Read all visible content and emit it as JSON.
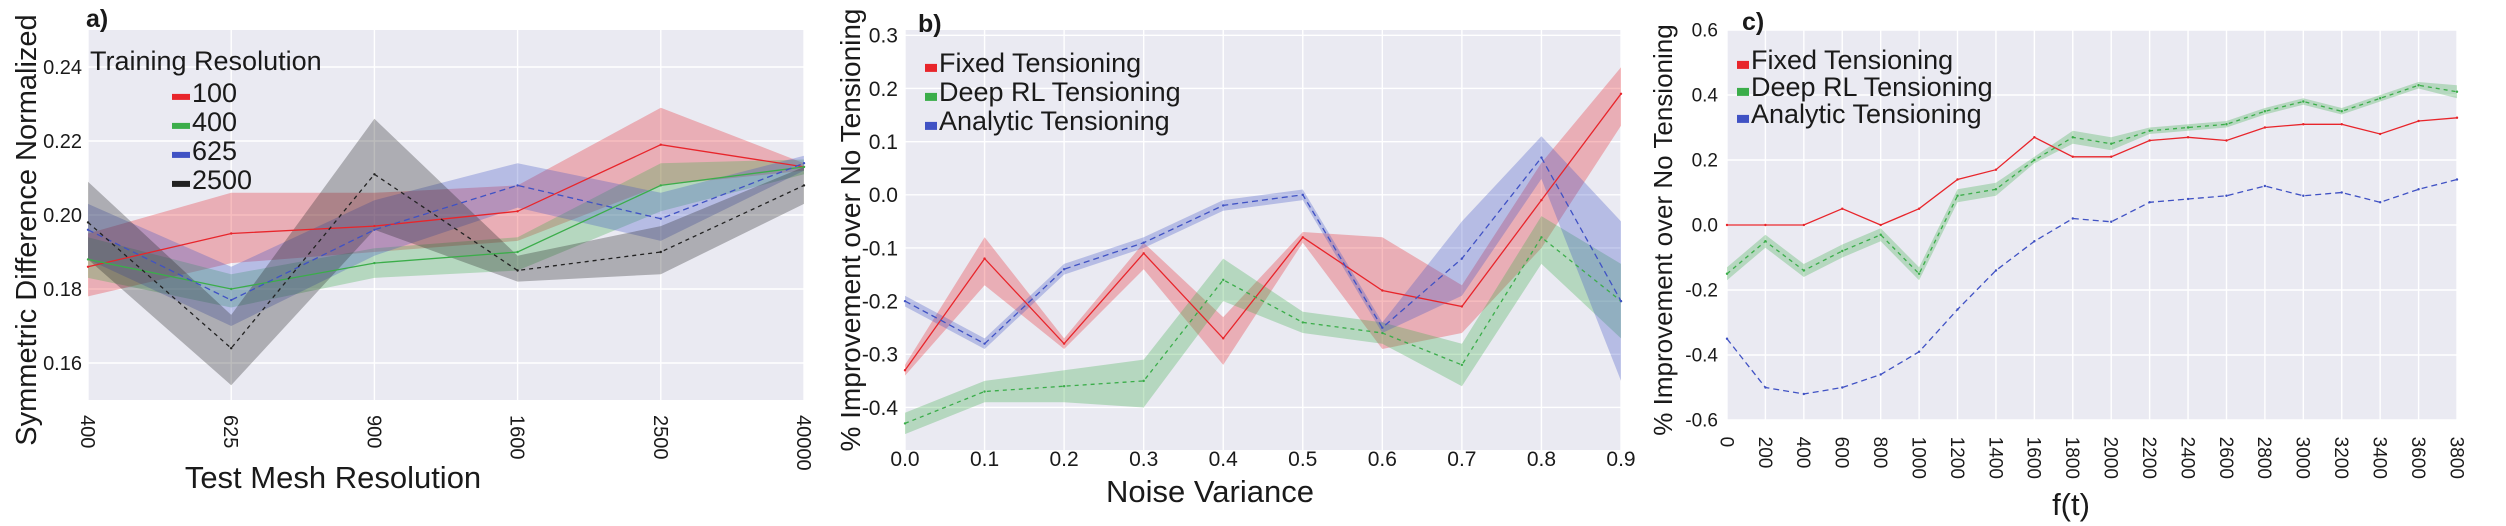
{
  "chart_data": [
    {
      "panel": "a)",
      "type": "line",
      "xlabel": "Test Mesh Resolution",
      "ylabel": "Symmetric Difference Normalized",
      "categories": [
        "400",
        "625",
        "900",
        "1600",
        "2500",
        "40000"
      ],
      "ylim": [
        0.15,
        0.25
      ],
      "yticks": [
        "0.16",
        "0.18",
        "0.20",
        "0.22",
        "0.24"
      ],
      "grid": true,
      "legend_title": "Training Resolution",
      "legend_position": "top-left",
      "series": [
        {
          "name": "100",
          "color": "#e8252b",
          "values": [
            0.186,
            0.195,
            0.197,
            0.201,
            0.219,
            0.213
          ],
          "lower": [
            0.178,
            0.187,
            0.19,
            0.193,
            0.208,
            0.212
          ],
          "upper": [
            0.195,
            0.206,
            0.206,
            0.208,
            0.229,
            0.214
          ]
        },
        {
          "name": "400",
          "color": "#3bad4a",
          "values": [
            0.188,
            0.18,
            0.187,
            0.19,
            0.208,
            0.213
          ],
          "lower": [
            0.183,
            0.175,
            0.183,
            0.185,
            0.201,
            0.211
          ],
          "upper": [
            0.194,
            0.184,
            0.191,
            0.194,
            0.214,
            0.215
          ]
        },
        {
          "name": "625",
          "color": "#4052c4",
          "values": [
            0.196,
            0.177,
            0.196,
            0.208,
            0.199,
            0.214
          ],
          "lower": [
            0.188,
            0.17,
            0.189,
            0.202,
            0.193,
            0.212
          ],
          "upper": [
            0.203,
            0.186,
            0.204,
            0.214,
            0.206,
            0.216
          ]
        },
        {
          "name": "2500",
          "color": "#222222",
          "values": [
            0.198,
            0.164,
            0.211,
            0.185,
            0.19,
            0.208
          ],
          "lower": [
            0.188,
            0.154,
            0.196,
            0.182,
            0.184,
            0.203
          ],
          "upper": [
            0.209,
            0.173,
            0.226,
            0.189,
            0.197,
            0.213
          ]
        }
      ]
    },
    {
      "panel": "b)",
      "type": "line",
      "xlabel": "Noise Variance",
      "ylabel": "% Improvement over No Tensioning",
      "x": [
        0.0,
        0.1,
        0.2,
        0.3,
        0.4,
        0.5,
        0.6,
        0.7,
        0.8,
        0.9
      ],
      "xticks": [
        "0.0",
        "0.1",
        "0.2",
        "0.3",
        "0.4",
        "0.5",
        "0.6",
        "0.7",
        "0.8",
        "0.9"
      ],
      "ylim": [
        -0.48,
        0.31
      ],
      "yticks": [
        "-0.4",
        "-0.3",
        "-0.2",
        "-0.1",
        "0.0",
        "0.1",
        "0.2",
        "0.3"
      ],
      "grid": true,
      "legend_position": "top-left",
      "series": [
        {
          "name": "Fixed Tensioning",
          "color": "#e8252b",
          "values": [
            -0.33,
            -0.12,
            -0.28,
            -0.11,
            -0.27,
            -0.08,
            -0.18,
            -0.21,
            -0.01,
            0.19
          ],
          "lower": [
            -0.34,
            -0.17,
            -0.29,
            -0.14,
            -0.32,
            -0.09,
            -0.29,
            -0.26,
            -0.1,
            0.13
          ],
          "upper": [
            -0.32,
            -0.08,
            -0.27,
            -0.09,
            -0.23,
            -0.07,
            -0.08,
            -0.17,
            0.06,
            0.24
          ]
        },
        {
          "name": "Deep RL Tensioning",
          "color": "#3bad4a",
          "values": [
            -0.43,
            -0.37,
            -0.36,
            -0.35,
            -0.16,
            -0.24,
            -0.26,
            -0.32,
            -0.08,
            -0.2
          ],
          "lower": [
            -0.45,
            -0.39,
            -0.39,
            -0.4,
            -0.2,
            -0.26,
            -0.28,
            -0.36,
            -0.13,
            -0.27
          ],
          "upper": [
            -0.41,
            -0.35,
            -0.33,
            -0.31,
            -0.12,
            -0.22,
            -0.24,
            -0.28,
            -0.04,
            -0.13
          ]
        },
        {
          "name": "Analytic Tensioning",
          "color": "#4052c4",
          "values": [
            -0.2,
            -0.28,
            -0.14,
            -0.09,
            -0.02,
            0.0,
            -0.25,
            -0.12,
            0.07,
            -0.2
          ],
          "lower": [
            -0.21,
            -0.29,
            -0.15,
            -0.1,
            -0.03,
            -0.01,
            -0.26,
            -0.19,
            0.03,
            -0.35
          ],
          "upper": [
            -0.19,
            -0.27,
            -0.13,
            -0.08,
            -0.01,
            0.01,
            -0.24,
            -0.05,
            0.11,
            -0.05
          ]
        }
      ]
    },
    {
      "panel": "c)",
      "type": "line",
      "xlabel": "f(t)",
      "ylabel": "% Improvement over No Tensioning",
      "x": [
        0,
        200,
        400,
        600,
        800,
        1000,
        1200,
        1400,
        1600,
        1800,
        2000,
        2200,
        2400,
        2600,
        2800,
        3000,
        3200,
        3400,
        3600,
        3800
      ],
      "xticks": [
        "0",
        "200",
        "400",
        "600",
        "800",
        "1000",
        "1200",
        "1400",
        "1600",
        "1800",
        "2000",
        "2200",
        "2400",
        "2600",
        "2800",
        "3000",
        "3200",
        "3400",
        "3600",
        "3800"
      ],
      "ylim": [
        -0.6,
        0.6
      ],
      "yticks": [
        "-0.6",
        "-0.4",
        "-0.2",
        "0.0",
        "0.2",
        "0.4",
        "0.6"
      ],
      "grid": true,
      "legend_position": "top-left",
      "series": [
        {
          "name": "Fixed Tensioning",
          "color": "#e8252b",
          "values": [
            0.0,
            0.0,
            0.0,
            0.05,
            0.0,
            0.05,
            0.14,
            0.17,
            0.27,
            0.21,
            0.21,
            0.26,
            0.27,
            0.26,
            0.3,
            0.31,
            0.31,
            0.28,
            0.32,
            0.33
          ]
        },
        {
          "name": "Deep RL Tensioning",
          "color": "#3bad4a",
          "values": [
            -0.15,
            -0.05,
            -0.14,
            -0.08,
            -0.03,
            -0.15,
            0.09,
            0.11,
            0.2,
            0.27,
            0.25,
            0.29,
            0.3,
            0.31,
            0.35,
            0.38,
            0.35,
            0.39,
            0.43,
            0.41
          ],
          "lower": [
            -0.17,
            -0.07,
            -0.16,
            -0.1,
            -0.05,
            -0.17,
            0.07,
            0.09,
            0.19,
            0.25,
            0.23,
            0.28,
            0.29,
            0.3,
            0.34,
            0.37,
            0.34,
            0.38,
            0.42,
            0.39
          ],
          "upper": [
            -0.13,
            -0.03,
            -0.12,
            -0.06,
            -0.01,
            -0.13,
            0.11,
            0.13,
            0.21,
            0.29,
            0.27,
            0.3,
            0.31,
            0.32,
            0.36,
            0.39,
            0.36,
            0.4,
            0.44,
            0.43
          ]
        },
        {
          "name": "Analytic Tensioning",
          "color": "#4052c4",
          "values": [
            -0.35,
            -0.5,
            -0.52,
            -0.5,
            -0.46,
            -0.39,
            -0.26,
            -0.14,
            -0.05,
            0.02,
            0.01,
            0.07,
            0.08,
            0.09,
            0.12,
            0.09,
            0.1,
            0.07,
            0.11,
            0.14
          ]
        }
      ]
    }
  ]
}
